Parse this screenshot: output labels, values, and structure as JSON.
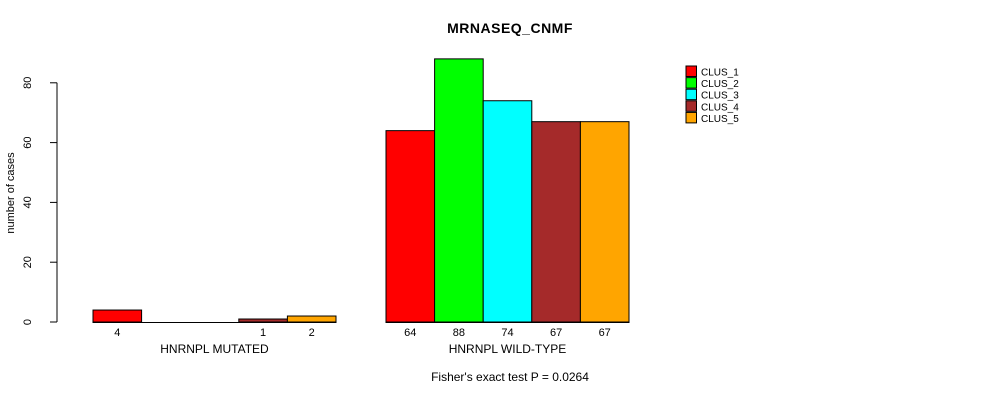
{
  "chart_data": {
    "type": "bar",
    "title": "MRNASEQ_CNMF",
    "ylabel": "number of cases",
    "xlabel": "",
    "annotation": "Fisher's exact test P = 0.0264",
    "yticks": [
      0,
      20,
      40,
      60,
      80
    ],
    "ylim": [
      0,
      88
    ],
    "grid": false,
    "legend_position": "right",
    "colors": [
      "#FF0000",
      "#00FF00",
      "#00FFFF",
      "#A52A2A",
      "#FFA500"
    ],
    "legend": [
      {
        "label": "CLUS_1",
        "color": "#FF0000"
      },
      {
        "label": "CLUS_2",
        "color": "#00FF00"
      },
      {
        "label": "CLUS_3",
        "color": "#00FFFF"
      },
      {
        "label": "CLUS_4",
        "color": "#A52A2A"
      },
      {
        "label": "CLUS_5",
        "color": "#FFA500"
      }
    ],
    "groups": [
      {
        "label": "HNRNPL MUTATED",
        "values": [
          4,
          0,
          0,
          1,
          2
        ],
        "bar_labels": [
          "4",
          "",
          "",
          "1",
          "2"
        ]
      },
      {
        "label": "HNRNPL WILD-TYPE",
        "values": [
          64,
          88,
          74,
          67,
          67
        ],
        "bar_labels": [
          "64",
          "88",
          "74",
          "67",
          "67"
        ]
      }
    ]
  }
}
